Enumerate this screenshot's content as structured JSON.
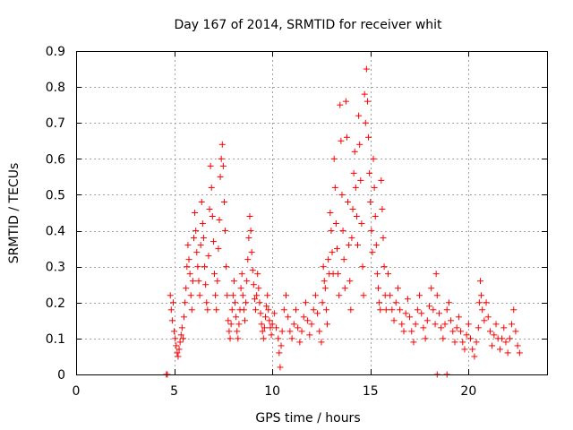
{
  "chart_data": {
    "type": "scatter",
    "title": "Day 167 of 2014, SRMTID for receiver whit",
    "xlabel": "GPS time / hours",
    "ylabel": "SRMTID / TECUs",
    "xlim": [
      0,
      24
    ],
    "ylim": [
      0,
      0.9
    ],
    "xticks": [
      0,
      5,
      10,
      15,
      20
    ],
    "yticks": [
      0,
      0.1,
      0.2,
      0.3,
      0.4,
      0.5,
      0.6,
      0.7,
      0.8,
      0.9
    ],
    "grid": true,
    "marker": "plus",
    "color": "#ff0000",
    "series": [
      {
        "name": "SRMTID",
        "points": [
          [
            4.6,
            0.0
          ],
          [
            4.65,
            0.0
          ],
          [
            18.4,
            0.0
          ],
          [
            18.9,
            0.0
          ],
          [
            4.8,
            0.22
          ],
          [
            4.85,
            0.18
          ],
          [
            4.9,
            0.15
          ],
          [
            4.95,
            0.2
          ],
          [
            5.0,
            0.12
          ],
          [
            5.05,
            0.1
          ],
          [
            5.1,
            0.08
          ],
          [
            5.15,
            0.06
          ],
          [
            5.2,
            0.05
          ],
          [
            5.25,
            0.07
          ],
          [
            5.3,
            0.09
          ],
          [
            5.35,
            0.11
          ],
          [
            5.4,
            0.13
          ],
          [
            5.45,
            0.1
          ],
          [
            5.5,
            0.16
          ],
          [
            5.55,
            0.2
          ],
          [
            5.6,
            0.24
          ],
          [
            5.65,
            0.3
          ],
          [
            5.7,
            0.36
          ],
          [
            5.75,
            0.32
          ],
          [
            5.8,
            0.28
          ],
          [
            5.85,
            0.22
          ],
          [
            5.9,
            0.18
          ],
          [
            5.95,
            0.26
          ],
          [
            6.0,
            0.38
          ],
          [
            6.05,
            0.45
          ],
          [
            6.1,
            0.4
          ],
          [
            6.15,
            0.34
          ],
          [
            6.2,
            0.3
          ],
          [
            6.25,
            0.26
          ],
          [
            6.3,
            0.22
          ],
          [
            6.35,
            0.36
          ],
          [
            6.4,
            0.48
          ],
          [
            6.45,
            0.42
          ],
          [
            6.5,
            0.38
          ],
          [
            6.55,
            0.3
          ],
          [
            6.6,
            0.25
          ],
          [
            6.65,
            0.2
          ],
          [
            6.7,
            0.18
          ],
          [
            6.75,
            0.33
          ],
          [
            6.8,
            0.46
          ],
          [
            6.85,
            0.58
          ],
          [
            6.9,
            0.52
          ],
          [
            6.95,
            0.44
          ],
          [
            7.0,
            0.37
          ],
          [
            7.05,
            0.28
          ],
          [
            7.1,
            0.22
          ],
          [
            7.15,
            0.18
          ],
          [
            7.2,
            0.26
          ],
          [
            7.25,
            0.35
          ],
          [
            7.3,
            0.43
          ],
          [
            7.35,
            0.55
          ],
          [
            7.4,
            0.6
          ],
          [
            7.45,
            0.64
          ],
          [
            7.5,
            0.58
          ],
          [
            7.55,
            0.48
          ],
          [
            7.6,
            0.4
          ],
          [
            7.65,
            0.3
          ],
          [
            7.7,
            0.22
          ],
          [
            7.75,
            0.15
          ],
          [
            7.8,
            0.12
          ],
          [
            7.85,
            0.1
          ],
          [
            7.9,
            0.14
          ],
          [
            7.95,
            0.18
          ],
          [
            8.0,
            0.22
          ],
          [
            8.05,
            0.26
          ],
          [
            8.1,
            0.2
          ],
          [
            8.15,
            0.16
          ],
          [
            8.2,
            0.12
          ],
          [
            8.25,
            0.1
          ],
          [
            8.3,
            0.14
          ],
          [
            8.35,
            0.18
          ],
          [
            8.4,
            0.24
          ],
          [
            8.45,
            0.28
          ],
          [
            8.5,
            0.22
          ],
          [
            8.55,
            0.18
          ],
          [
            8.6,
            0.15
          ],
          [
            8.65,
            0.2
          ],
          [
            8.7,
            0.26
          ],
          [
            8.75,
            0.32
          ],
          [
            8.8,
            0.38
          ],
          [
            8.85,
            0.44
          ],
          [
            8.9,
            0.4
          ],
          [
            8.95,
            0.34
          ],
          [
            9.0,
            0.29
          ],
          [
            9.05,
            0.25
          ],
          [
            9.1,
            0.21
          ],
          [
            9.15,
            0.18
          ],
          [
            9.2,
            0.22
          ],
          [
            9.25,
            0.28
          ],
          [
            9.3,
            0.24
          ],
          [
            9.35,
            0.2
          ],
          [
            9.4,
            0.17
          ],
          [
            9.45,
            0.14
          ],
          [
            9.5,
            0.12
          ],
          [
            9.55,
            0.1
          ],
          [
            9.6,
            0.13
          ],
          [
            9.65,
            0.16
          ],
          [
            9.7,
            0.19
          ],
          [
            9.75,
            0.22
          ],
          [
            9.8,
            0.18
          ],
          [
            9.85,
            0.15
          ],
          [
            9.9,
            0.13
          ],
          [
            9.95,
            0.11
          ],
          [
            10.0,
            0.14
          ],
          [
            10.1,
            0.17
          ],
          [
            10.2,
            0.13
          ],
          [
            10.3,
            0.1
          ],
          [
            10.35,
            0.06
          ],
          [
            10.4,
            0.02
          ],
          [
            10.45,
            0.08
          ],
          [
            10.5,
            0.12
          ],
          [
            10.6,
            0.18
          ],
          [
            10.7,
            0.22
          ],
          [
            10.8,
            0.16
          ],
          [
            10.9,
            0.12
          ],
          [
            11.0,
            0.1
          ],
          [
            11.1,
            0.14
          ],
          [
            11.2,
            0.18
          ],
          [
            11.3,
            0.13
          ],
          [
            11.4,
            0.09
          ],
          [
            11.5,
            0.12
          ],
          [
            11.6,
            0.16
          ],
          [
            11.7,
            0.2
          ],
          [
            11.8,
            0.15
          ],
          [
            11.9,
            0.11
          ],
          [
            12.0,
            0.14
          ],
          [
            12.1,
            0.18
          ],
          [
            12.2,
            0.22
          ],
          [
            12.3,
            0.17
          ],
          [
            12.4,
            0.12
          ],
          [
            12.5,
            0.09
          ],
          [
            12.55,
            0.2
          ],
          [
            12.6,
            0.3
          ],
          [
            12.65,
            0.26
          ],
          [
            12.7,
            0.24
          ],
          [
            12.75,
            0.18
          ],
          [
            12.8,
            0.14
          ],
          [
            12.85,
            0.32
          ],
          [
            12.9,
            0.28
          ],
          [
            12.95,
            0.45
          ],
          [
            13.0,
            0.4
          ],
          [
            13.05,
            0.34
          ],
          [
            13.1,
            0.28
          ],
          [
            13.15,
            0.6
          ],
          [
            13.2,
            0.52
          ],
          [
            13.25,
            0.42
          ],
          [
            13.3,
            0.35
          ],
          [
            13.35,
            0.28
          ],
          [
            13.4,
            0.22
          ],
          [
            13.45,
            0.75
          ],
          [
            13.5,
            0.65
          ],
          [
            13.55,
            0.5
          ],
          [
            13.6,
            0.4
          ],
          [
            13.65,
            0.32
          ],
          [
            13.7,
            0.24
          ],
          [
            13.75,
            0.76
          ],
          [
            13.8,
            0.66
          ],
          [
            13.85,
            0.48
          ],
          [
            13.9,
            0.36
          ],
          [
            13.95,
            0.26
          ],
          [
            14.0,
            0.18
          ],
          [
            14.05,
            0.38
          ],
          [
            14.1,
            0.46
          ],
          [
            14.15,
            0.56
          ],
          [
            14.2,
            0.62
          ],
          [
            14.25,
            0.52
          ],
          [
            14.3,
            0.44
          ],
          [
            14.35,
            0.36
          ],
          [
            14.4,
            0.72
          ],
          [
            14.45,
            0.64
          ],
          [
            14.5,
            0.54
          ],
          [
            14.55,
            0.42
          ],
          [
            14.6,
            0.3
          ],
          [
            14.65,
            0.22
          ],
          [
            14.7,
            0.78
          ],
          [
            14.75,
            0.7
          ],
          [
            14.8,
            0.85
          ],
          [
            14.85,
            0.76
          ],
          [
            14.9,
            0.66
          ],
          [
            14.95,
            0.56
          ],
          [
            15.0,
            0.48
          ],
          [
            15.05,
            0.4
          ],
          [
            15.1,
            0.34
          ],
          [
            15.15,
            0.6
          ],
          [
            15.2,
            0.52
          ],
          [
            15.25,
            0.44
          ],
          [
            15.3,
            0.36
          ],
          [
            15.35,
            0.28
          ],
          [
            15.4,
            0.24
          ],
          [
            15.45,
            0.2
          ],
          [
            15.5,
            0.18
          ],
          [
            15.55,
            0.54
          ],
          [
            15.6,
            0.46
          ],
          [
            15.65,
            0.38
          ],
          [
            15.7,
            0.3
          ],
          [
            15.75,
            0.22
          ],
          [
            15.8,
            0.18
          ],
          [
            15.9,
            0.28
          ],
          [
            16.0,
            0.22
          ],
          [
            16.1,
            0.18
          ],
          [
            16.2,
            0.15
          ],
          [
            16.3,
            0.2
          ],
          [
            16.4,
            0.24
          ],
          [
            16.5,
            0.18
          ],
          [
            16.6,
            0.14
          ],
          [
            16.7,
            0.12
          ],
          [
            16.8,
            0.17
          ],
          [
            16.9,
            0.21
          ],
          [
            17.0,
            0.16
          ],
          [
            17.1,
            0.12
          ],
          [
            17.2,
            0.09
          ],
          [
            17.3,
            0.14
          ],
          [
            17.4,
            0.18
          ],
          [
            17.5,
            0.22
          ],
          [
            17.6,
            0.17
          ],
          [
            17.7,
            0.13
          ],
          [
            17.8,
            0.1
          ],
          [
            17.9,
            0.15
          ],
          [
            18.0,
            0.19
          ],
          [
            18.1,
            0.24
          ],
          [
            18.2,
            0.18
          ],
          [
            18.3,
            0.14
          ],
          [
            18.35,
            0.28
          ],
          [
            18.4,
            0.22
          ],
          [
            18.5,
            0.17
          ],
          [
            18.6,
            0.13
          ],
          [
            18.7,
            0.1
          ],
          [
            18.8,
            0.14
          ],
          [
            18.9,
            0.18
          ],
          [
            19.0,
            0.2
          ],
          [
            19.1,
            0.15
          ],
          [
            19.2,
            0.12
          ],
          [
            19.3,
            0.09
          ],
          [
            19.4,
            0.13
          ],
          [
            19.5,
            0.16
          ],
          [
            19.6,
            0.12
          ],
          [
            19.7,
            0.09
          ],
          [
            19.8,
            0.07
          ],
          [
            19.9,
            0.11
          ],
          [
            20.0,
            0.14
          ],
          [
            20.1,
            0.1
          ],
          [
            20.2,
            0.07
          ],
          [
            20.3,
            0.05
          ],
          [
            20.4,
            0.09
          ],
          [
            20.5,
            0.13
          ],
          [
            20.55,
            0.2
          ],
          [
            20.6,
            0.26
          ],
          [
            20.65,
            0.22
          ],
          [
            20.7,
            0.18
          ],
          [
            20.8,
            0.15
          ],
          [
            20.9,
            0.2
          ],
          [
            21.0,
            0.16
          ],
          [
            21.1,
            0.12
          ],
          [
            21.2,
            0.08
          ],
          [
            21.3,
            0.11
          ],
          [
            21.4,
            0.14
          ],
          [
            21.5,
            0.1
          ],
          [
            21.6,
            0.07
          ],
          [
            21.7,
            0.1
          ],
          [
            21.8,
            0.13
          ],
          [
            21.9,
            0.09
          ],
          [
            22.0,
            0.06
          ],
          [
            22.1,
            0.1
          ],
          [
            22.2,
            0.14
          ],
          [
            22.3,
            0.18
          ],
          [
            22.4,
            0.12
          ],
          [
            22.5,
            0.08
          ],
          [
            22.6,
            0.06
          ]
        ]
      }
    ]
  }
}
